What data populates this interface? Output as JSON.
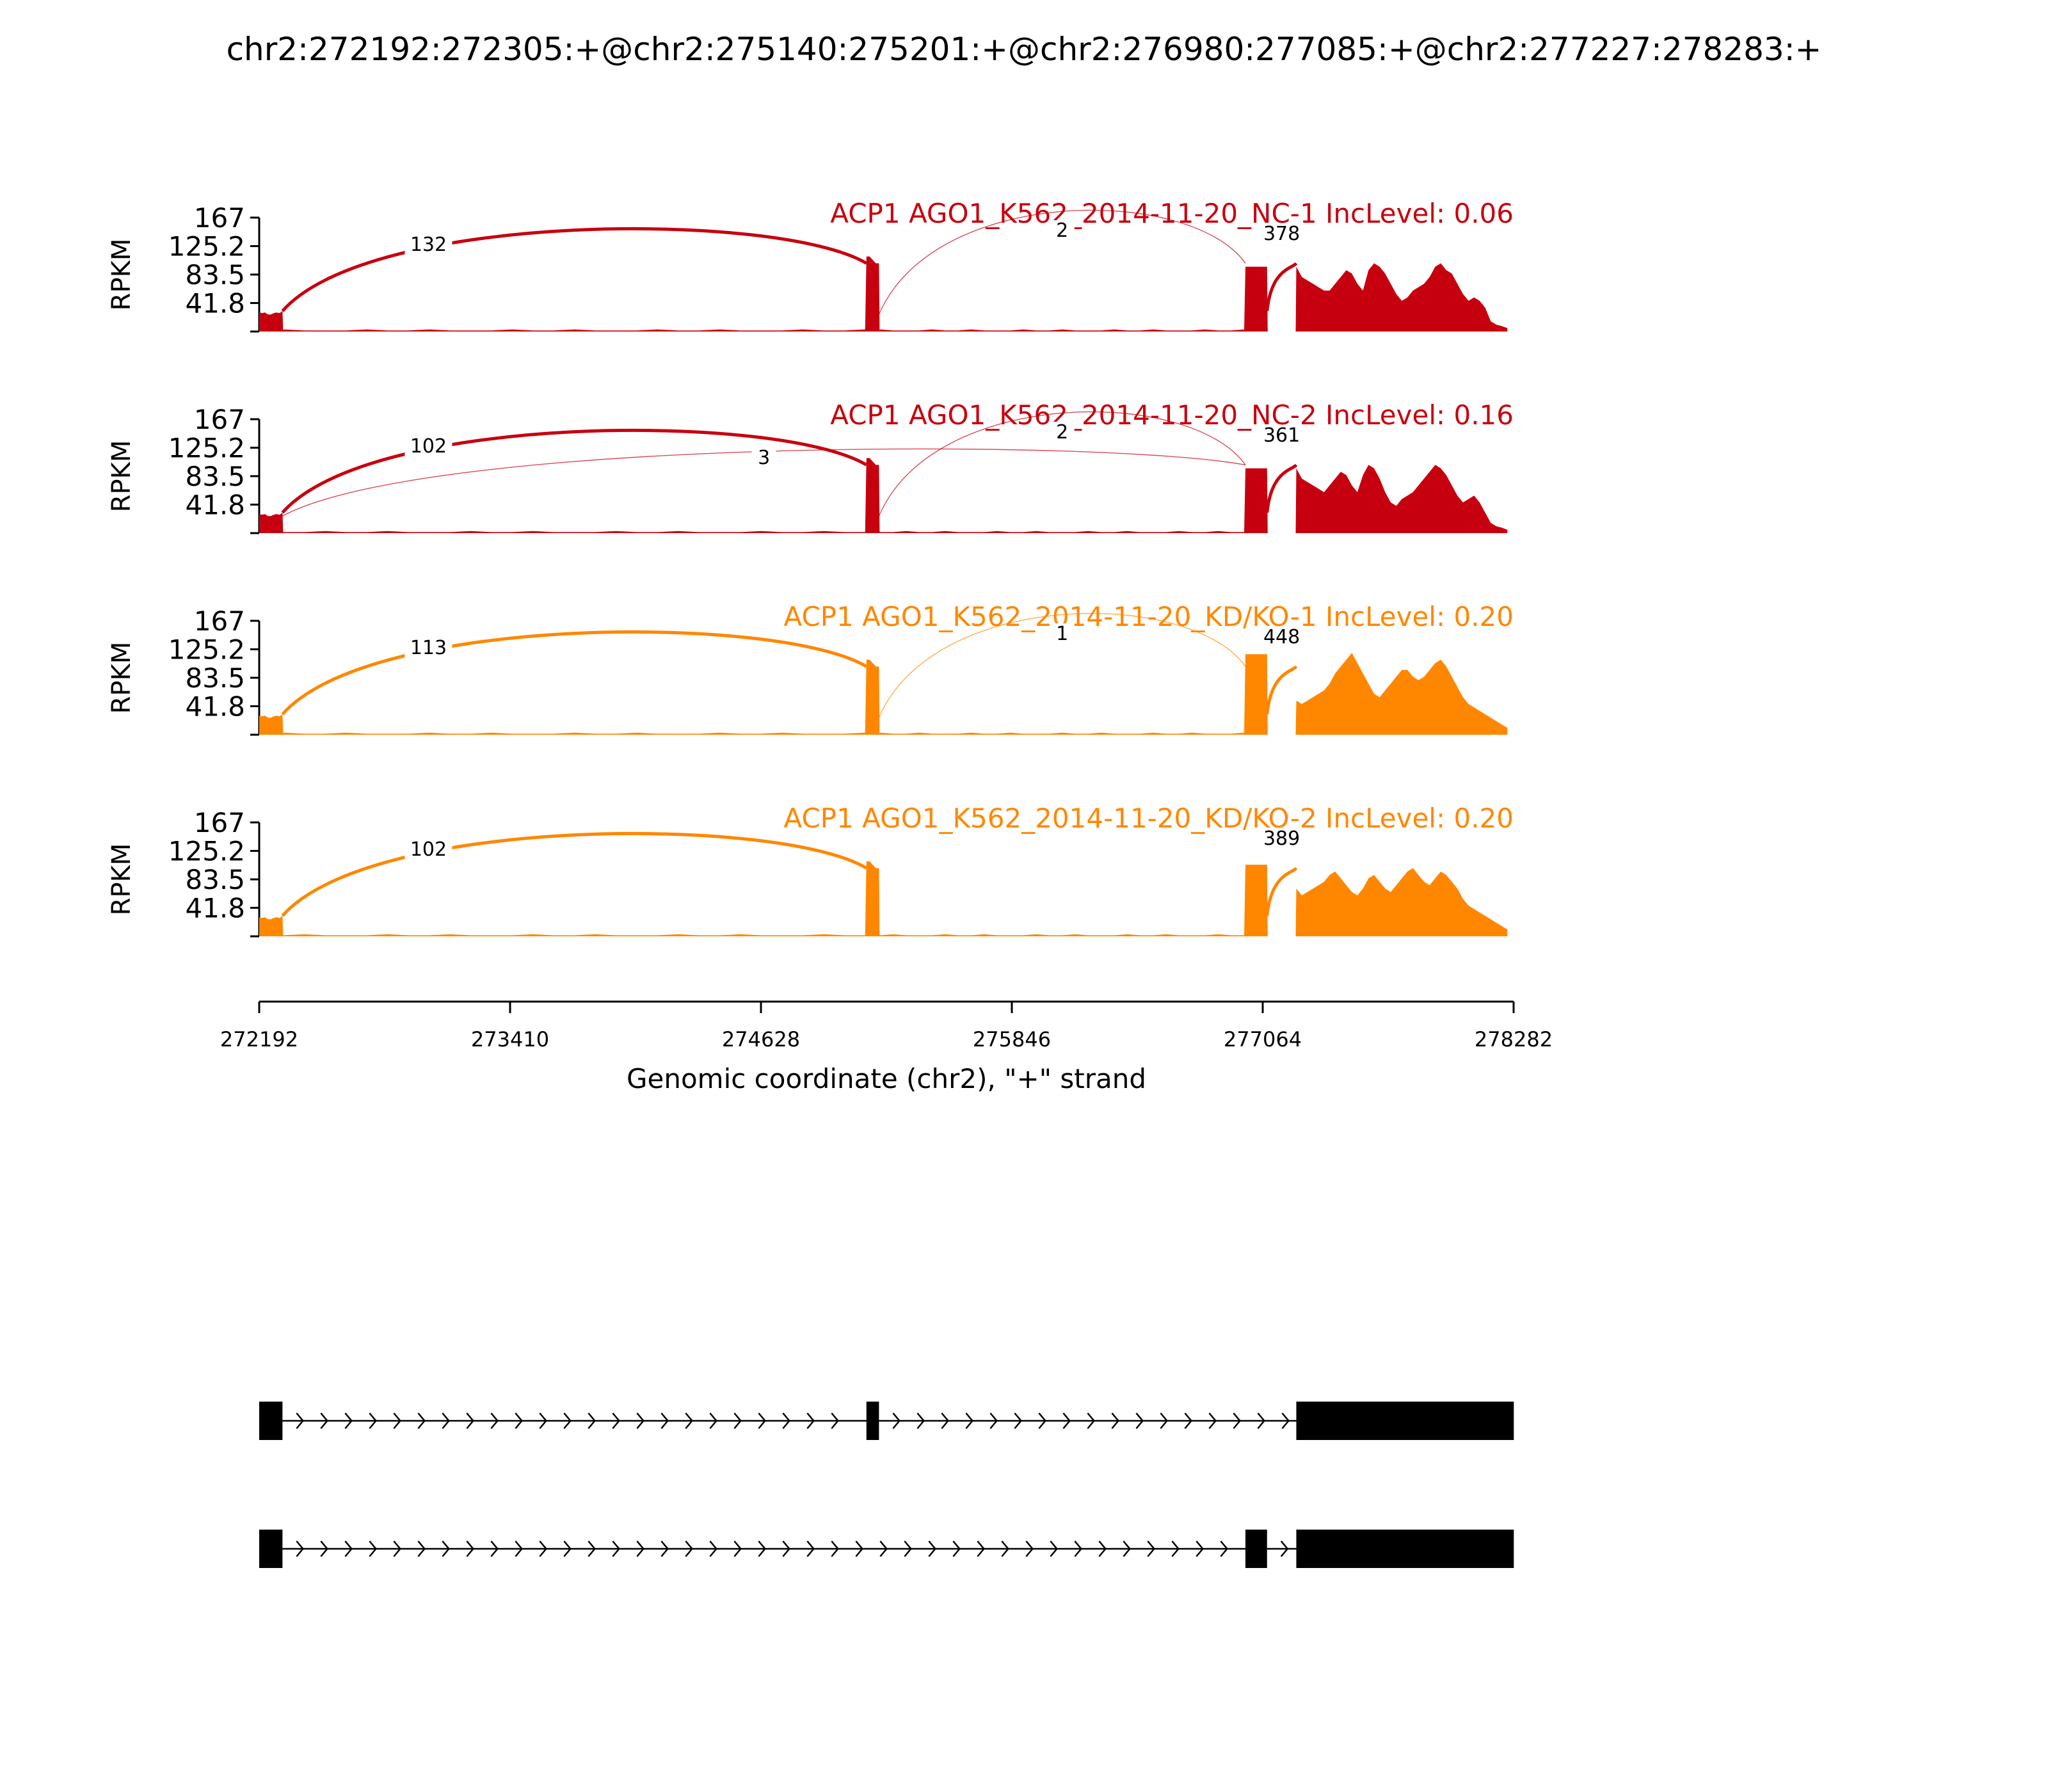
{
  "title": "chr2:272192:272305:+@chr2:275140:275201:+@chr2:276980:277085:+@chr2:277227:278283:+",
  "chart_data": {
    "type": "sashimi",
    "ylabel": "RPKM",
    "yticks": [
      "167",
      "125.2",
      "83.5",
      "41.8"
    ],
    "ytick_values": [
      167,
      125.2,
      83.5,
      41.8
    ],
    "ylim": [
      0,
      167
    ],
    "xlim": [
      272192,
      278282
    ],
    "xticks": [
      "272192",
      "273410",
      "274628",
      "275846",
      "277064",
      "278282"
    ],
    "xtick_values": [
      272192,
      273410,
      274628,
      275846,
      277064,
      278282
    ],
    "xlabel": "Genomic coordinate (chr2), \"+\" strand",
    "exons": [
      {
        "start": 272192,
        "end": 272305
      },
      {
        "start": 275140,
        "end": 275201
      },
      {
        "start": 276980,
        "end": 277085
      },
      {
        "start": 277227,
        "end": 278283
      }
    ],
    "coverage_levels": {
      "exon1": [
        28,
        27,
        28,
        25,
        25,
        27,
        28,
        27,
        30
      ],
      "exon2": [
        110,
        110,
        105,
        100,
        100
      ],
      "exon3": [
        95,
        95,
        95,
        95,
        95,
        95
      ]
    },
    "tracks": [
      {
        "name": "ACP1 AGO1_K562_2014-11-20_NC-1 IncLevel: 0.06",
        "color": "#c7000f",
        "junctions": [
          {
            "from": 272305,
            "to": 275140,
            "count": "132",
            "weight": 3
          },
          {
            "from": 275201,
            "to": 276980,
            "count": "2",
            "weight": 0.6
          },
          {
            "from": 277085,
            "to": 277227,
            "count": "378",
            "weight": 3
          }
        ],
        "exon3_level": 95,
        "exon4_profile": [
          95,
          80,
          75,
          70,
          65,
          60,
          60,
          70,
          80,
          90,
          85,
          70,
          60,
          90,
          100,
          95,
          85,
          70,
          55,
          45,
          50,
          60,
          65,
          70,
          80,
          95,
          100,
          90,
          85,
          70,
          55,
          45,
          50,
          45,
          35,
          15,
          10,
          8,
          5
        ]
      },
      {
        "name": "ACP1 AGO1_K562_2014-11-20_NC-2 IncLevel: 0.16",
        "color": "#c7000f",
        "junctions": [
          {
            "from": 272305,
            "to": 275140,
            "count": "102",
            "weight": 3
          },
          {
            "from": 272305,
            "to": 276980,
            "count": "3",
            "weight": 0.6
          },
          {
            "from": 275201,
            "to": 276980,
            "count": "2",
            "weight": 0.6
          },
          {
            "from": 277085,
            "to": 277227,
            "count": "361",
            "weight": 3
          }
        ],
        "exon3_level": 95,
        "exon4_profile": [
          95,
          80,
          75,
          70,
          65,
          60,
          70,
          80,
          90,
          85,
          70,
          60,
          85,
          100,
          95,
          80,
          60,
          45,
          40,
          50,
          55,
          60,
          70,
          80,
          90,
          100,
          95,
          85,
          70,
          55,
          45,
          50,
          55,
          45,
          30,
          15,
          10,
          8,
          5
        ]
      },
      {
        "name": "ACP1 AGO1_K562_2014-11-20_KD/KO-1 IncLevel: 0.20",
        "color": "#ff8700",
        "junctions": [
          {
            "from": 272305,
            "to": 275140,
            "count": "113",
            "weight": 3
          },
          {
            "from": 275201,
            "to": 276980,
            "count": "1",
            "weight": 0.6
          },
          {
            "from": 277085,
            "to": 277227,
            "count": "448",
            "weight": 3
          }
        ],
        "exon3_level": 118,
        "exon4_profile": [
          50,
          45,
          50,
          55,
          60,
          65,
          75,
          90,
          100,
          110,
          120,
          105,
          90,
          75,
          60,
          55,
          65,
          75,
          85,
          95,
          95,
          85,
          80,
          85,
          95,
          105,
          110,
          100,
          85,
          70,
          55,
          45,
          40,
          35,
          30,
          25,
          20,
          15,
          10
        ]
      },
      {
        "name": "ACP1 AGO1_K562_2014-11-20_KD/KO-2 IncLevel: 0.20",
        "color": "#ff8700",
        "junctions": [
          {
            "from": 272305,
            "to": 275140,
            "count": "102",
            "weight": 3
          },
          {
            "from": 277085,
            "to": 277227,
            "count": "389",
            "weight": 3
          }
        ],
        "exon3_level": 105,
        "exon4_profile": [
          70,
          60,
          65,
          70,
          75,
          80,
          90,
          95,
          85,
          75,
          65,
          60,
          70,
          85,
          90,
          80,
          70,
          65,
          75,
          85,
          95,
          100,
          90,
          80,
          75,
          85,
          95,
          90,
          80,
          70,
          55,
          45,
          40,
          35,
          30,
          25,
          20,
          15,
          10
        ]
      }
    ],
    "isoforms": [
      {
        "exons": [
          [
            272192,
            272305
          ],
          [
            275140,
            275201
          ],
          [
            277227,
            278283
          ]
        ]
      },
      {
        "exons": [
          [
            272192,
            272305
          ],
          [
            276980,
            277085
          ],
          [
            277227,
            278283
          ]
        ]
      }
    ]
  }
}
